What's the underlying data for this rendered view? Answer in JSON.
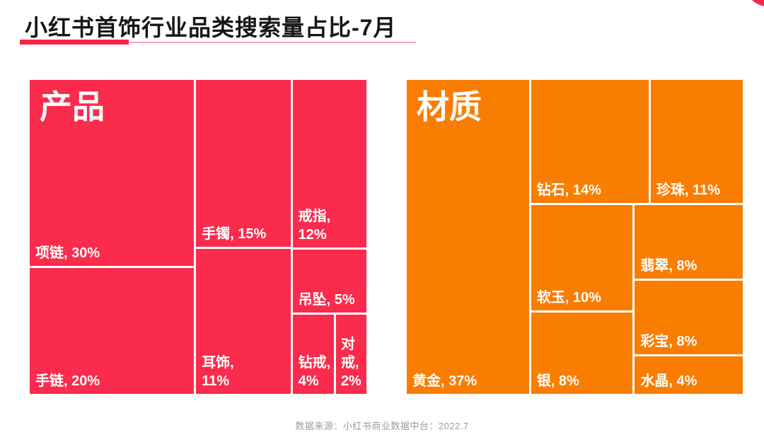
{
  "header": {
    "title": "小红书首饰行业品类搜索量占比-7月"
  },
  "footer": {
    "source": "数据来源：小红书商业数据中台：2022.7"
  },
  "colors": {
    "product_red": "#fa2b4c",
    "material_orange": "#f97d01",
    "underline_red": "#f82449",
    "underline_pink": "#f6aab8",
    "label_text": "#ffffff",
    "footer_text": "#9c9c9c"
  },
  "chart_data": [
    {
      "type": "treemap",
      "title": "产品",
      "unit": "%",
      "color": "#fa2b4c",
      "legend_position": "none",
      "items": [
        {
          "name": "项链",
          "value": 30,
          "label": "项链, 30%"
        },
        {
          "name": "手链",
          "value": 20,
          "label": "手链, 20%"
        },
        {
          "name": "手镯",
          "value": 15,
          "label": "手镯, 15%"
        },
        {
          "name": "戒指",
          "value": 12,
          "label": "戒指, 12%"
        },
        {
          "name": "耳饰",
          "value": 11,
          "label": "耳饰, 11%"
        },
        {
          "name": "吊坠",
          "value": 5,
          "label": "吊坠, 5%"
        },
        {
          "name": "钻戒",
          "value": 4,
          "label": "钻戒, 4%"
        },
        {
          "name": "对戒",
          "value": 2,
          "label": "对戒, 2%"
        }
      ]
    },
    {
      "type": "treemap",
      "title": "材质",
      "unit": "%",
      "color": "#f97d01",
      "legend_position": "none",
      "items": [
        {
          "name": "黄金",
          "value": 37,
          "label": "黄金, 37%"
        },
        {
          "name": "钻石",
          "value": 14,
          "label": "钻石, 14%"
        },
        {
          "name": "珍珠",
          "value": 11,
          "label": "珍珠, 11%"
        },
        {
          "name": "软玉",
          "value": 10,
          "label": "软玉, 10%"
        },
        {
          "name": "翡翠",
          "value": 8,
          "label": "翡翠, 8%"
        },
        {
          "name": "彩宝",
          "value": 8,
          "label": "彩宝, 8%"
        },
        {
          "name": "银",
          "value": 8,
          "label": "银, 8%"
        },
        {
          "name": "水晶",
          "value": 4,
          "label": "水晶, 4%"
        }
      ]
    }
  ]
}
